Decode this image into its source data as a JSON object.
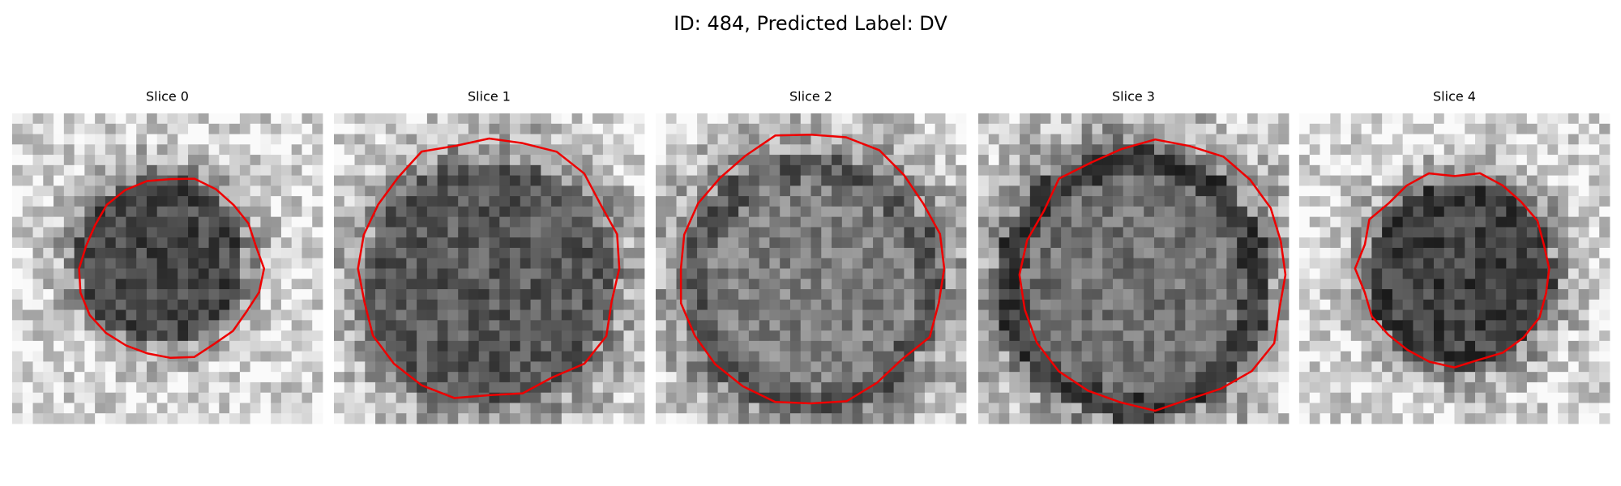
{
  "title": "ID: 484, Predicted Label: DV",
  "panels": [
    {
      "title": "Slice 0"
    },
    {
      "title": "Slice 1"
    },
    {
      "title": "Slice 2"
    },
    {
      "title": "Slice 3"
    },
    {
      "title": "Slice 4"
    }
  ]
}
